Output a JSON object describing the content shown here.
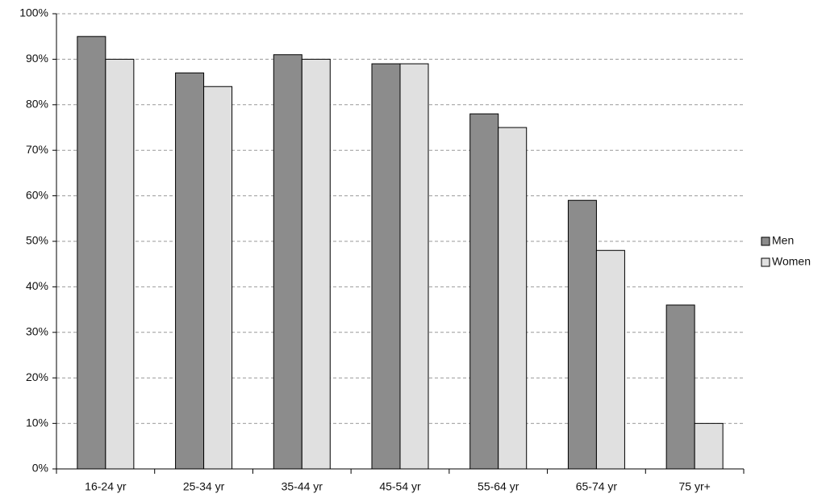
{
  "chart_data": {
    "type": "bar",
    "categories": [
      "16-24 yr",
      "25-34 yr",
      "35-44 yr",
      "45-54 yr",
      "55-64 yr",
      "65-74 yr",
      "75 yr+"
    ],
    "series": [
      {
        "name": "Men",
        "color": "#8c8c8c",
        "values": [
          95,
          87,
          91,
          89,
          78,
          59,
          36
        ]
      },
      {
        "name": "Women",
        "color": "#e0e0e0",
        "values": [
          90,
          84,
          90,
          89,
          75,
          48,
          10
        ]
      }
    ],
    "ylim": [
      0,
      100
    ],
    "yticks": [
      {
        "value": 0,
        "label": "0%"
      },
      {
        "value": 10,
        "label": "10%"
      },
      {
        "value": 20,
        "label": "20%"
      },
      {
        "value": 30,
        "label": "30%"
      },
      {
        "value": 40,
        "label": "40%"
      },
      {
        "value": 50,
        "label": "50%"
      },
      {
        "value": 60,
        "label": "60%"
      },
      {
        "value": 70,
        "label": "70%"
      },
      {
        "value": 80,
        "label": "80%"
      },
      {
        "value": 90,
        "label": "90%"
      },
      {
        "value": 100,
        "label": "100%"
      }
    ],
    "grid": true,
    "legend": "right"
  }
}
